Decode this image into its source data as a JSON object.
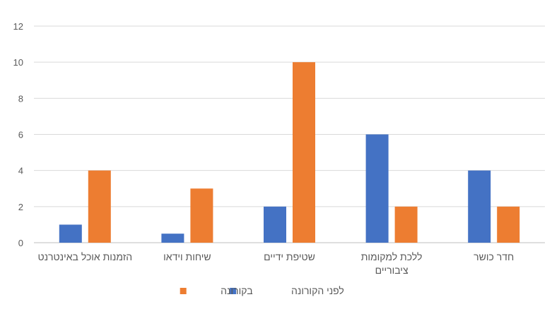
{
  "chart_data": {
    "type": "bar",
    "categories": [
      [
        "הזמנות אוכל באינטרנט"
      ],
      [
        "שיחות וידאו"
      ],
      [
        "שטיפת ידיים"
      ],
      [
        "ללכת למקומות",
        "ציבוריים"
      ],
      [
        "חדר כושר"
      ]
    ],
    "series": [
      {
        "name": "לפני הקורונה",
        "color": "#4472C4",
        "values": [
          1,
          0.5,
          2,
          6,
          4
        ]
      },
      {
        "name": "בקורונה",
        "color": "#ED7D31",
        "values": [
          4,
          3,
          10,
          2,
          2
        ]
      }
    ],
    "ylim": [
      0,
      12
    ],
    "yticks": [
      0,
      2,
      4,
      6,
      8,
      10,
      12
    ],
    "grid": true,
    "legend": "bottom"
  }
}
